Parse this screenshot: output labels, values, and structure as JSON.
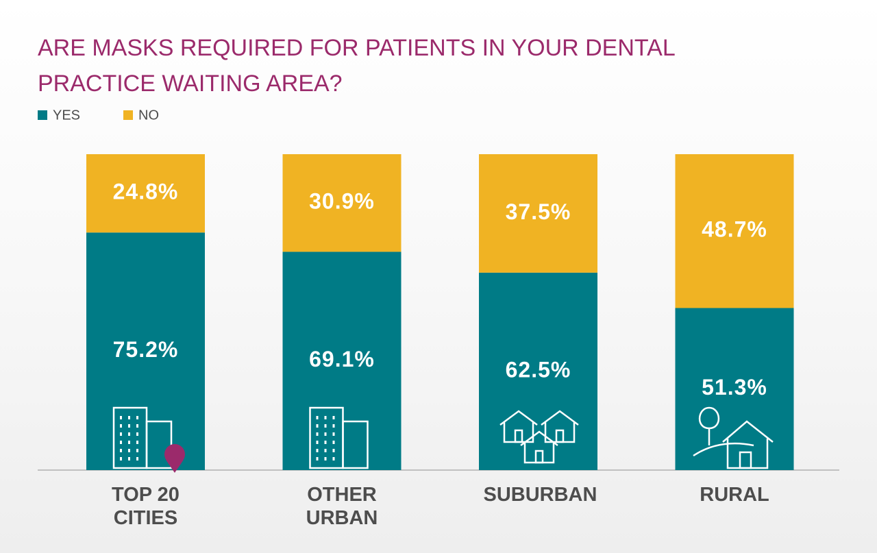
{
  "chart_data": {
    "type": "stacked_bar",
    "title": "ARE MASKS REQUIRED FOR PATIENTS IN YOUR DENTAL PRACTICE WAITING AREA?",
    "categories": [
      "TOP 20 CITIES",
      "OTHER URBAN",
      "SUBURBAN",
      "RURAL"
    ],
    "series": [
      {
        "name": "YES",
        "color": "#007b86",
        "values": [
          75.2,
          69.1,
          62.5,
          51.3
        ],
        "value_labels": [
          "75.2%",
          "69.1%",
          "62.5%",
          "51.3%"
        ]
      },
      {
        "name": "NO",
        "color": "#f0b323",
        "values": [
          24.8,
          30.9,
          37.5,
          48.7
        ],
        "value_labels": [
          "24.8%",
          "30.9%",
          "37.5%",
          "48.7%"
        ]
      }
    ],
    "ylim": [
      0,
      100
    ]
  }
}
